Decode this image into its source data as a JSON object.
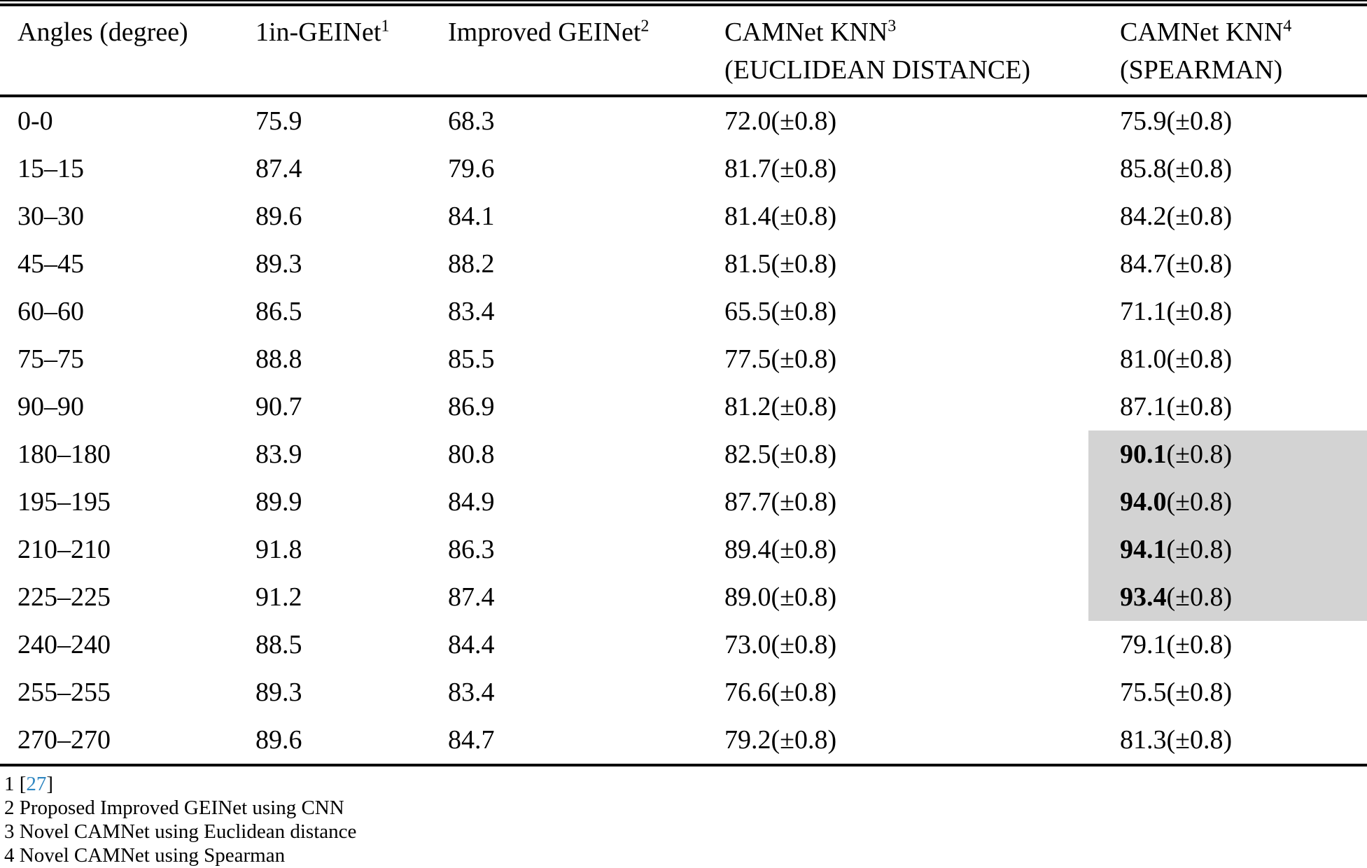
{
  "colors": {
    "link": "#2E86C1",
    "highlight": "#d3d3d3",
    "text": "#000000",
    "background": "#ffffff"
  },
  "table": {
    "columns": [
      {
        "label": "Angles (degree)",
        "sup": "",
        "line2": ""
      },
      {
        "label": "1in-GEINet",
        "sup": "1",
        "line2": ""
      },
      {
        "label": "Improved GEINet",
        "sup": "2",
        "line2": ""
      },
      {
        "label": "CAMNet KNN",
        "sup": "3",
        "line2": "(EUCLIDEAN DISTANCE)"
      },
      {
        "label": "CAMNet KNN",
        "sup": "4",
        "line2": "(SPEARMAN)"
      }
    ],
    "rows": [
      {
        "angle": "0-0",
        "v1": "75.9",
        "v2": "68.3",
        "v3": "72.0",
        "e3": "(±0.8)",
        "v4": "75.9",
        "e4": "(±0.8)",
        "hl": false
      },
      {
        "angle": "15–15",
        "v1": "87.4",
        "v2": "79.6",
        "v3": "81.7",
        "e3": "(±0.8)",
        "v4": "85.8",
        "e4": "(±0.8)",
        "hl": false
      },
      {
        "angle": "30–30",
        "v1": "89.6",
        "v2": "84.1",
        "v3": "81.4",
        "e3": "(±0.8)",
        "v4": "84.2",
        "e4": "(±0.8)",
        "hl": false
      },
      {
        "angle": "45–45",
        "v1": "89.3",
        "v2": "88.2",
        "v3": "81.5",
        "e3": "(±0.8)",
        "v4": "84.7",
        "e4": "(±0.8)",
        "hl": false
      },
      {
        "angle": "60–60",
        "v1": "86.5",
        "v2": "83.4",
        "v3": "65.5",
        "e3": "(±0.8)",
        "v4": "71.1",
        "e4": "(±0.8)",
        "hl": false
      },
      {
        "angle": "75–75",
        "v1": "88.8",
        "v2": "85.5",
        "v3": "77.5",
        "e3": "(±0.8)",
        "v4": "81.0",
        "e4": "(±0.8)",
        "hl": false
      },
      {
        "angle": "90–90",
        "v1": "90.7",
        "v2": "86.9",
        "v3": "81.2",
        "e3": "(±0.8)",
        "v4": "87.1",
        "e4": "(±0.8)",
        "hl": false
      },
      {
        "angle": "180–180",
        "v1": "83.9",
        "v2": "80.8",
        "v3": "82.5",
        "e3": "(±0.8)",
        "v4": "90.1",
        "e4": "(±0.8)",
        "hl": true
      },
      {
        "angle": "195–195",
        "v1": "89.9",
        "v2": "84.9",
        "v3": "87.7",
        "e3": "(±0.8)",
        "v4": "94.0",
        "e4": "(±0.8)",
        "hl": true
      },
      {
        "angle": "210–210",
        "v1": "91.8",
        "v2": "86.3",
        "v3": "89.4",
        "e3": "(±0.8)",
        "v4": "94.1",
        "e4": "(±0.8)",
        "hl": true
      },
      {
        "angle": "225–225",
        "v1": "91.2",
        "v2": "87.4",
        "v3": "89.0",
        "e3": "(±0.8)",
        "v4": "93.4",
        "e4": "(±0.8)",
        "hl": true
      },
      {
        "angle": "240–240",
        "v1": "88.5",
        "v2": "84.4",
        "v3": "73.0",
        "e3": "(±0.8)",
        "v4": "79.1",
        "e4": "(±0.8)",
        "hl": false
      },
      {
        "angle": "255–255",
        "v1": "89.3",
        "v2": "83.4",
        "v3": "76.6",
        "e3": "(±0.8)",
        "v4": "75.5",
        "e4": "(±0.8)",
        "hl": false
      },
      {
        "angle": "270–270",
        "v1": "89.6",
        "v2": "84.7",
        "v3": "79.2",
        "e3": "(±0.8)",
        "v4": "81.3",
        "e4": "(±0.8)",
        "hl": false
      }
    ]
  },
  "footnotes": [
    {
      "marker": "1",
      "text": "",
      "pre": "[",
      "link": "27",
      "post": "]"
    },
    {
      "marker": "2",
      "text": "Proposed Improved GEINet using CNN",
      "pre": "",
      "link": "",
      "post": ""
    },
    {
      "marker": "3",
      "text": "Novel CAMNet using Euclidean distance",
      "pre": "",
      "link": "",
      "post": ""
    },
    {
      "marker": "4",
      "text": "Novel CAMNet using Spearman",
      "pre": "",
      "link": "",
      "post": ""
    }
  ]
}
